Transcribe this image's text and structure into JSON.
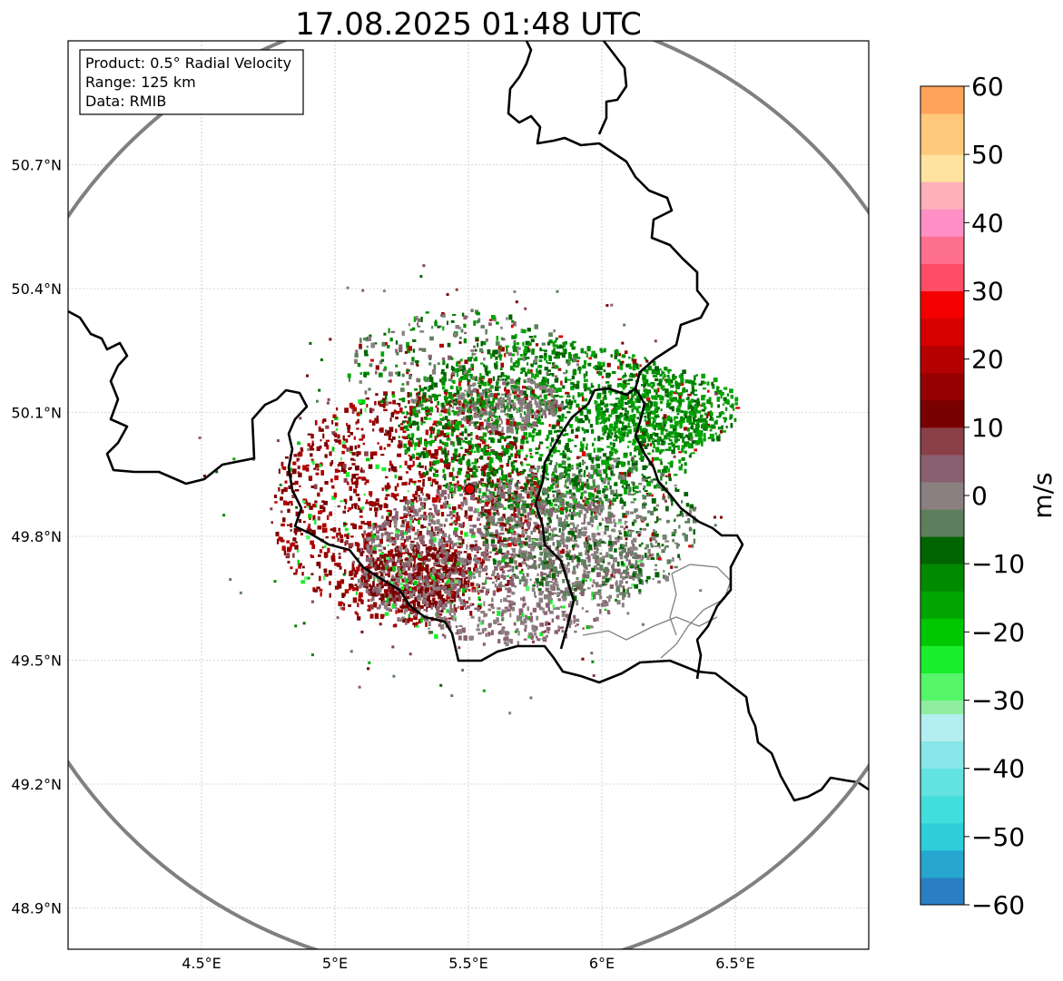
{
  "title": "17.08.2025 01:48 UTC",
  "info_box": {
    "product": "Product: 0.5° Radial Velocity",
    "range": "Range: 125 km",
    "data": "Data: RMIB"
  },
  "map": {
    "lon_range": [
      4.0,
      7.0
    ],
    "lat_range": [
      48.8,
      51.0
    ],
    "x_ticks": [
      {
        "value": 4.5,
        "label": "4.5°E"
      },
      {
        "value": 5.0,
        "label": "5°E"
      },
      {
        "value": 5.5,
        "label": "5.5°E"
      },
      {
        "value": 6.0,
        "label": "6°E"
      },
      {
        "value": 6.5,
        "label": "6.5°E"
      }
    ],
    "y_ticks": [
      {
        "value": 50.7,
        "label": "50.7°N"
      },
      {
        "value": 50.4,
        "label": "50.4°N"
      },
      {
        "value": 50.1,
        "label": "50.1°N"
      },
      {
        "value": 49.8,
        "label": "49.8°N"
      },
      {
        "value": 49.5,
        "label": "49.5°N"
      },
      {
        "value": 49.2,
        "label": "49.2°N"
      },
      {
        "value": 48.9,
        "label": "48.9°N"
      }
    ],
    "radar_site": {
      "lon": 5.505,
      "lat": 49.914
    },
    "range_ring_km": 125,
    "colors": {
      "range_ring": "#808080",
      "border": "#000000",
      "admin": "#808080",
      "radar_marker": "#e00000"
    }
  },
  "colorbar": {
    "label": "m/s",
    "min": -60,
    "max": 60,
    "ticks": [
      {
        "value": 60,
        "label": "60"
      },
      {
        "value": 50,
        "label": "50"
      },
      {
        "value": 40,
        "label": "40"
      },
      {
        "value": 30,
        "label": "30"
      },
      {
        "value": 20,
        "label": "20"
      },
      {
        "value": 10,
        "label": "10"
      },
      {
        "value": 0,
        "label": "0"
      },
      {
        "value": -10,
        "label": "−10"
      },
      {
        "value": -20,
        "label": "−20"
      },
      {
        "value": -30,
        "label": "−30"
      },
      {
        "value": -40,
        "label": "−40"
      },
      {
        "value": -50,
        "label": "−50"
      },
      {
        "value": -60,
        "label": "−60"
      }
    ],
    "stops": [
      {
        "from": -60,
        "to": -56,
        "color": "#2a7fc4"
      },
      {
        "from": -56,
        "to": -52,
        "color": "#27a6cf"
      },
      {
        "from": -52,
        "to": -48,
        "color": "#2ecddc"
      },
      {
        "from": -48,
        "to": -44,
        "color": "#42dede"
      },
      {
        "from": -44,
        "to": -40,
        "color": "#63e2e2"
      },
      {
        "from": -40,
        "to": -36,
        "color": "#86e6e8"
      },
      {
        "from": -36,
        "to": -32,
        "color": "#b3eef0"
      },
      {
        "from": -32,
        "to": -30,
        "color": "#90eea0"
      },
      {
        "from": -30,
        "to": -26,
        "color": "#55f66a"
      },
      {
        "from": -26,
        "to": -22,
        "color": "#18ee2a"
      },
      {
        "from": -22,
        "to": -18,
        "color": "#00c800"
      },
      {
        "from": -18,
        "to": -14,
        "color": "#00a500"
      },
      {
        "from": -14,
        "to": -10,
        "color": "#008a00"
      },
      {
        "from": -10,
        "to": -6,
        "color": "#006400"
      },
      {
        "from": -6,
        "to": -2,
        "color": "#5e7f5e"
      },
      {
        "from": -2,
        "to": 2,
        "color": "#8a8080"
      },
      {
        "from": 2,
        "to": 6,
        "color": "#8a6070"
      },
      {
        "from": 6,
        "to": 10,
        "color": "#8a4048"
      },
      {
        "from": 10,
        "to": 14,
        "color": "#780000"
      },
      {
        "from": 14,
        "to": 18,
        "color": "#960000"
      },
      {
        "from": 18,
        "to": 22,
        "color": "#b40000"
      },
      {
        "from": 22,
        "to": 26,
        "color": "#d60000"
      },
      {
        "from": 26,
        "to": 30,
        "color": "#f50000"
      },
      {
        "from": 30,
        "to": 34,
        "color": "#ff4d66"
      },
      {
        "from": 34,
        "to": 38,
        "color": "#ff6f8e"
      },
      {
        "from": 38,
        "to": 42,
        "color": "#ff8fc4"
      },
      {
        "from": 42,
        "to": 46,
        "color": "#ffb0b8"
      },
      {
        "from": 46,
        "to": 50,
        "color": "#ffe2a0"
      },
      {
        "from": 50,
        "to": 56,
        "color": "#ffc87a"
      },
      {
        "from": 56,
        "to": 60,
        "color": "#ffa45a"
      }
    ]
  }
}
